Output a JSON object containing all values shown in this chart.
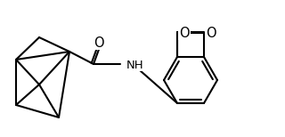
{
  "background_color": "#ffffff",
  "line_color": "#000000",
  "line_width": 1.5,
  "font_size": 9.5,
  "figsize": [
    3.2,
    1.54
  ],
  "dpi": 100,
  "O_label": "O",
  "NH_label": "NH"
}
